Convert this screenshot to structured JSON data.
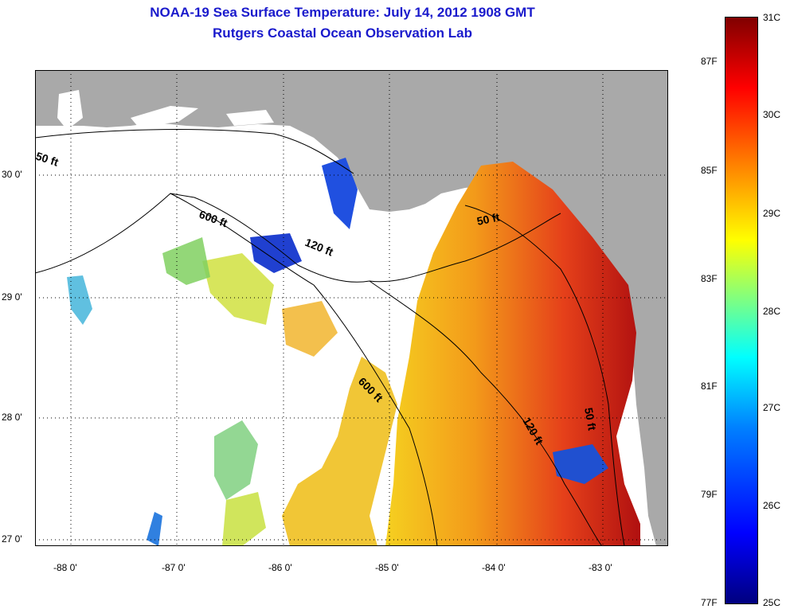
{
  "title": {
    "line1": "NOAA-19 Sea Surface Temperature:  July 14, 2012 1908 GMT",
    "line2": "Rutgers Coastal Ocean Observation Lab"
  },
  "map": {
    "lon_ticks": [
      {
        "label": "-88 0'"
      },
      {
        "label": "-87 0'"
      },
      {
        "label": "-86 0'"
      },
      {
        "label": "-85 0'"
      },
      {
        "label": "-84 0'"
      },
      {
        "label": "-83 0'"
      }
    ],
    "lat_ticks": [
      {
        "label": "30 0'"
      },
      {
        "label": "29 0'"
      },
      {
        "label": "28 0'"
      },
      {
        "label": "27 0'"
      }
    ],
    "contours": {
      "c50_west": "50 ft",
      "c600_north": "600 ft",
      "c120_north": "120 ft",
      "c50_east": "50 ft",
      "c600_south": "600 ft",
      "c120_south": "120 ft",
      "c50_south": "50 ft"
    },
    "colors": {
      "land": "#a9a9a9",
      "water_nodata": "#ffffff"
    }
  },
  "colorbar": {
    "celsius_labels": [
      "31C",
      "30C",
      "29C",
      "28C",
      "27C",
      "26C",
      "25C"
    ],
    "fahrenheit_labels": [
      "87F",
      "85F",
      "83F",
      "81F",
      "79F",
      "77F"
    ],
    "colors": [
      "#00007f",
      "#0000ff",
      "#0080ff",
      "#00ffff",
      "#80ff80",
      "#ffff00",
      "#ff8000",
      "#ff0000",
      "#800000"
    ]
  }
}
